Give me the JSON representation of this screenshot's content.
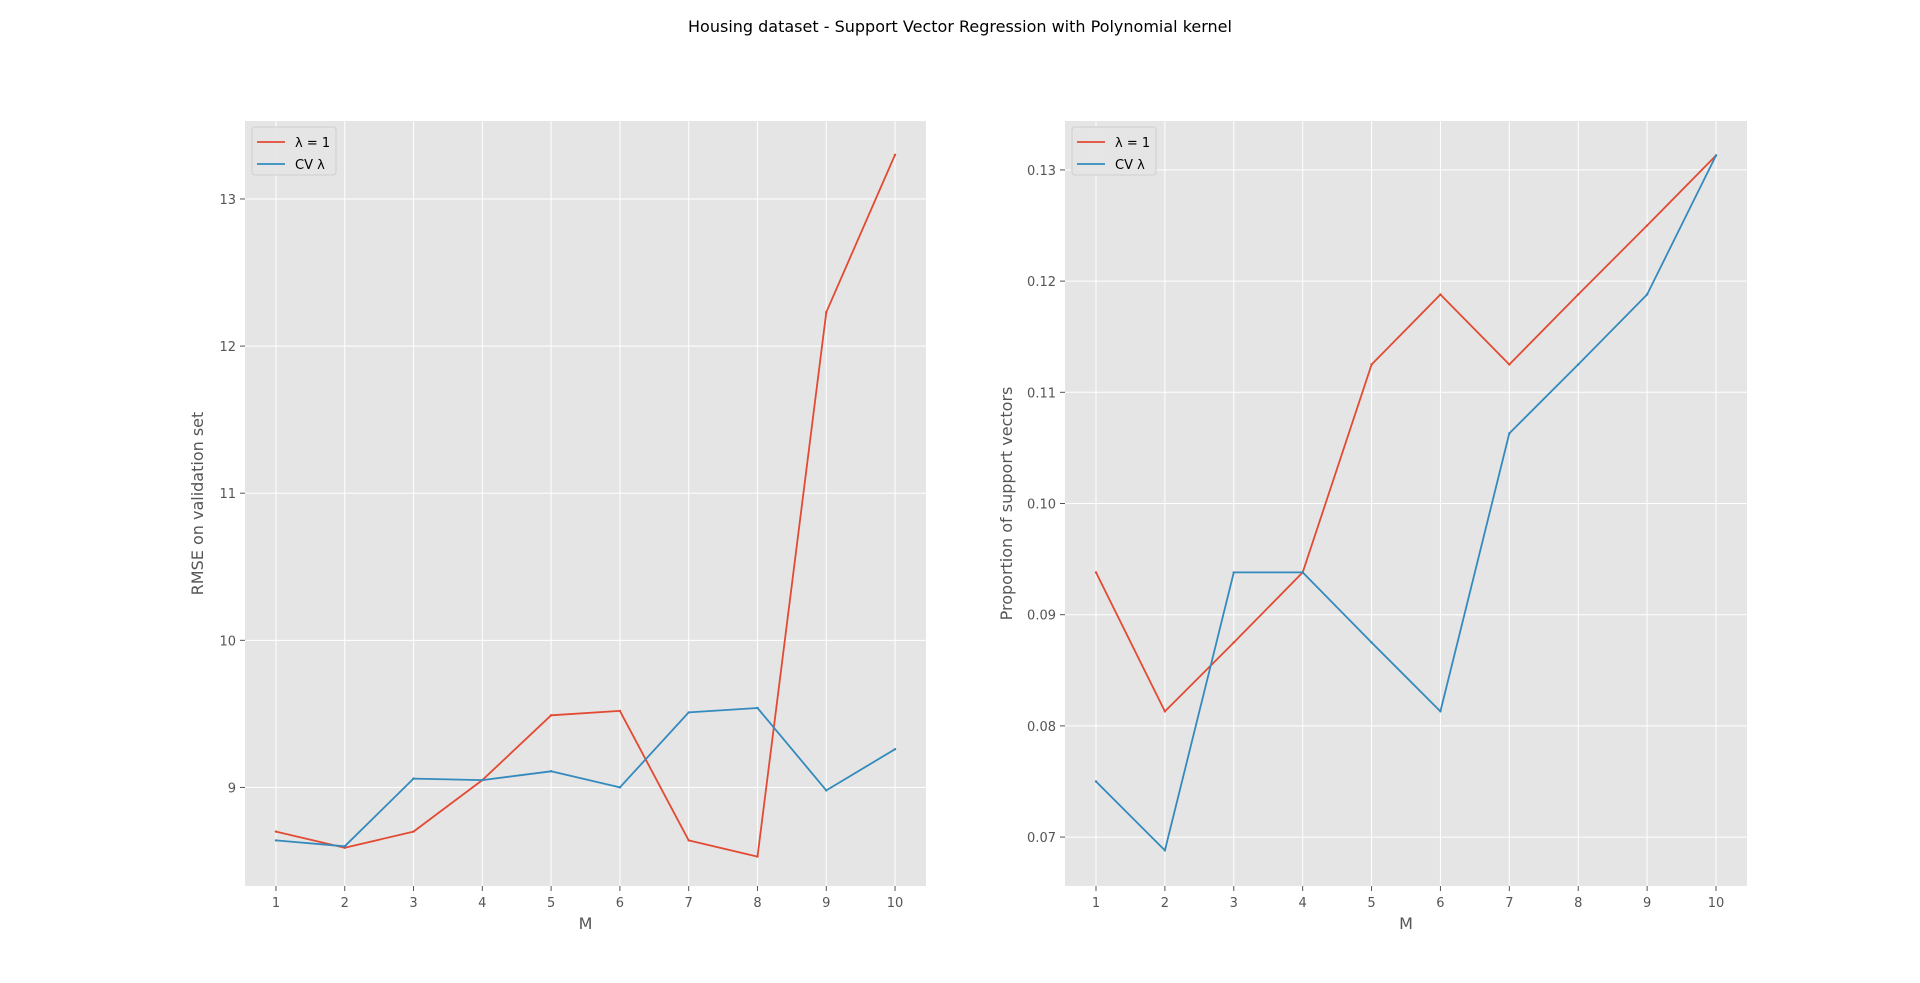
{
  "figure": {
    "title": "Housing dataset - Support Vector Regression with Polynomial kernel",
    "background": "#ffffff",
    "axes_background": "#e5e5e5",
    "grid_color": "#ffffff",
    "tick_color": "#555555"
  },
  "chart_data": [
    {
      "type": "line",
      "title": "",
      "xlabel": "M",
      "ylabel": "RMSE on validation set",
      "x": [
        1,
        2,
        3,
        4,
        5,
        6,
        7,
        8,
        9,
        10
      ],
      "xlim": [
        0.55,
        10.45
      ],
      "ylim": [
        8.33,
        13.53
      ],
      "xticks": [
        "1",
        "2",
        "3",
        "4",
        "5",
        "6",
        "7",
        "8",
        "9",
        "10"
      ],
      "yticks": [
        {
          "value": 9,
          "label": "9"
        },
        {
          "value": 10,
          "label": "10"
        },
        {
          "value": 11,
          "label": "11"
        },
        {
          "value": 12,
          "label": "12"
        },
        {
          "value": 13,
          "label": "13"
        }
      ],
      "grid": true,
      "legend": "top-left",
      "series": [
        {
          "name": "λ = 1",
          "color": "#e24a33",
          "values": [
            8.7,
            8.59,
            8.7,
            9.05,
            9.49,
            9.52,
            8.64,
            8.53,
            12.23,
            13.3
          ]
        },
        {
          "name": "CV λ",
          "color": "#348abd",
          "values": [
            8.64,
            8.6,
            9.06,
            9.05,
            9.11,
            9.0,
            9.51,
            9.54,
            8.98,
            9.26
          ]
        }
      ]
    },
    {
      "type": "line",
      "title": "",
      "xlabel": "M",
      "ylabel": "Proportion of support vectors",
      "x": [
        1,
        2,
        3,
        4,
        5,
        6,
        7,
        8,
        9,
        10
      ],
      "xlim": [
        0.55,
        10.45
      ],
      "ylim": [
        0.0656,
        0.1344
      ],
      "xticks": [
        "1",
        "2",
        "3",
        "4",
        "5",
        "6",
        "7",
        "8",
        "9",
        "10"
      ],
      "yticks": [
        {
          "value": 0.07,
          "label": "0.07"
        },
        {
          "value": 0.08,
          "label": "0.08"
        },
        {
          "value": 0.09,
          "label": "0.09"
        },
        {
          "value": 0.1,
          "label": "0.10"
        },
        {
          "value": 0.11,
          "label": "0.11"
        },
        {
          "value": 0.12,
          "label": "0.12"
        },
        {
          "value": 0.13,
          "label": "0.13"
        }
      ],
      "grid": true,
      "legend": "top-left",
      "series": [
        {
          "name": "λ = 1",
          "color": "#e24a33",
          "values": [
            0.0938,
            0.0813,
            0.0875,
            0.0938,
            0.1125,
            0.1188,
            0.1125,
            0.1188,
            0.125,
            0.1313
          ]
        },
        {
          "name": "CV λ",
          "color": "#348abd",
          "values": [
            0.075,
            0.0688,
            0.0938,
            0.0938,
            0.0875,
            0.0813,
            0.1063,
            0.1125,
            0.1188,
            0.1313
          ]
        }
      ]
    }
  ]
}
